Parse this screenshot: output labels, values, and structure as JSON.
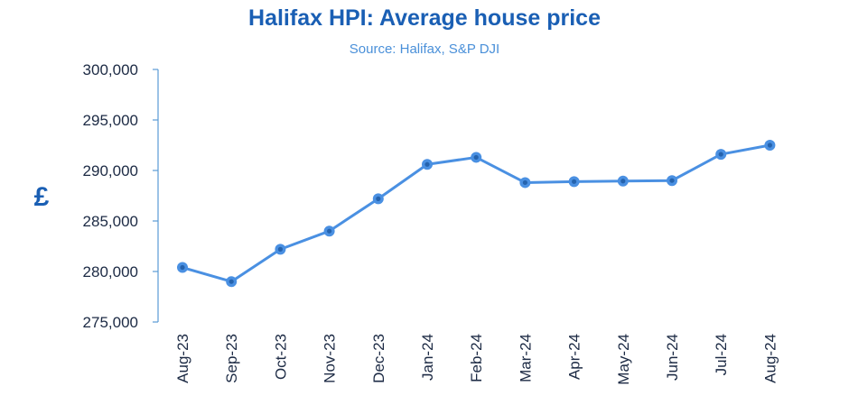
{
  "colors": {
    "title": "#1a5fb4",
    "subtitle": "#4a90d9",
    "axis": "#5b9bd5",
    "line": "#4a90e2",
    "marker": "#4a90e2",
    "marker_core": "#2563ae",
    "tick_text": "#1c2a44"
  },
  "chart_data": {
    "type": "line",
    "title": "Halifax HPI: Average house price",
    "subtitle": "Source: Halifax, S&P DJI",
    "ylabel": "£",
    "xlabel": "",
    "ylim": [
      275000,
      300000
    ],
    "yticks": [
      275000,
      280000,
      285000,
      290000,
      295000,
      300000
    ],
    "ytick_labels": [
      "275,000",
      "280,000",
      "285,000",
      "290,000",
      "295,000",
      "300,000"
    ],
    "categories": [
      "Aug-23",
      "Sep-23",
      "Oct-23",
      "Nov-23",
      "Dec-23",
      "Jan-24",
      "Feb-24",
      "Mar-24",
      "Apr-24",
      "May-24",
      "Jun-24",
      "Jul-24",
      "Aug-24"
    ],
    "series": [
      {
        "values": [
          280400,
          279000,
          282200,
          284000,
          287200,
          290600,
          291300,
          288800,
          288900,
          288950,
          289000,
          291600,
          292500
        ]
      }
    ],
    "grid": false,
    "legend": "none"
  }
}
